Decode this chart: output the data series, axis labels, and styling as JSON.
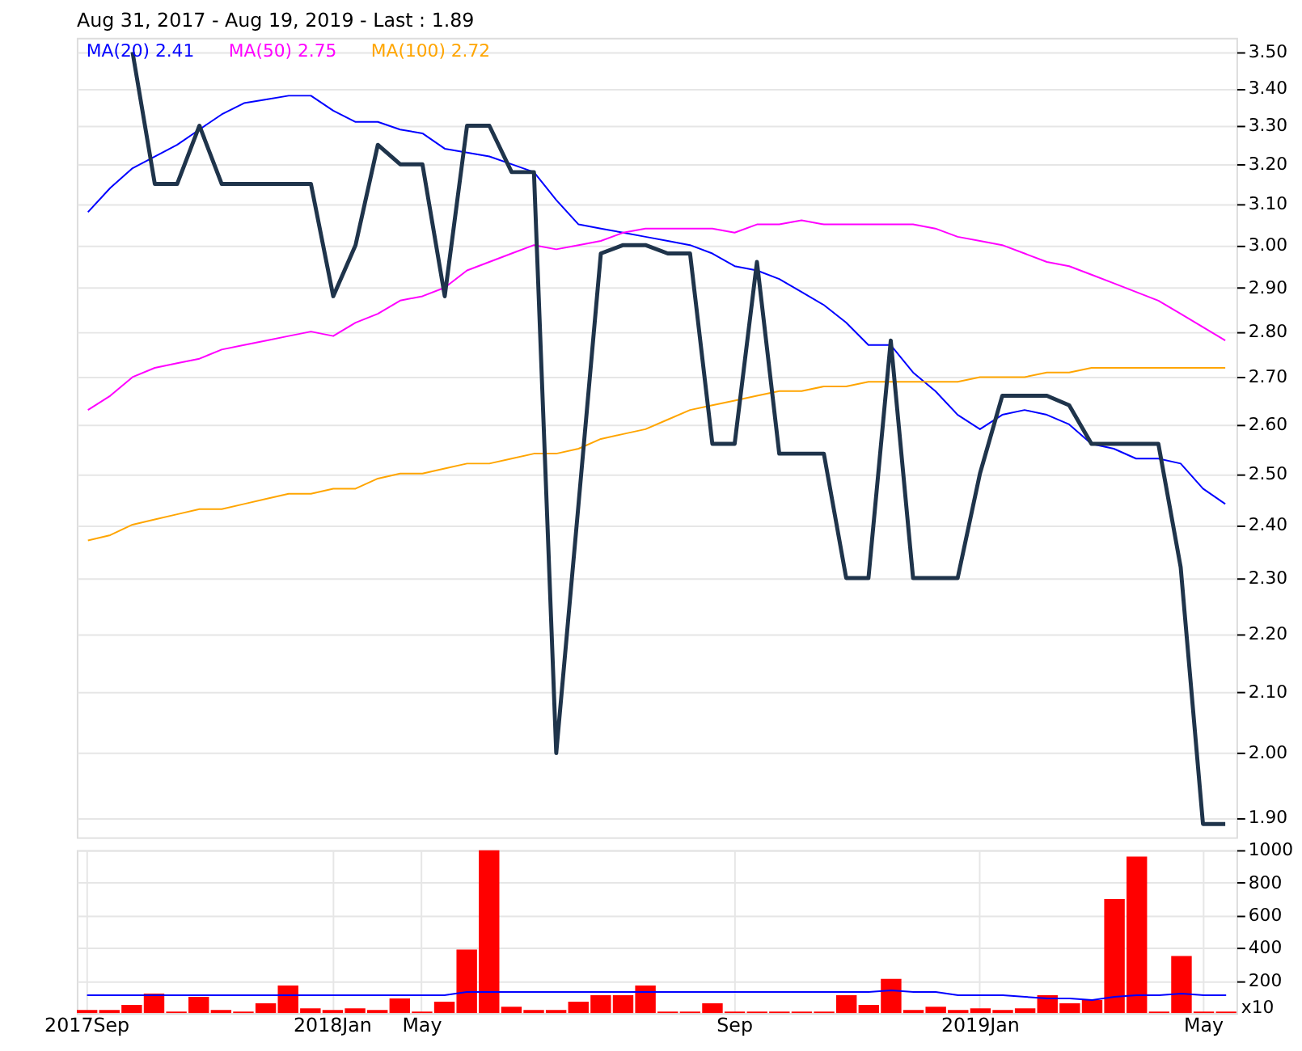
{
  "chart_data": [
    {
      "type": "line",
      "title": "Aug 31, 2017 - Aug 19, 2019 - Last : 1.89",
      "categories": [
        null,
        null,
        null,
        null,
        null,
        null,
        null,
        null,
        null,
        null,
        null,
        null,
        null,
        null,
        null,
        null,
        null,
        null,
        null,
        null,
        null,
        null,
        null,
        null,
        null,
        null,
        null,
        null,
        null,
        null,
        null,
        null,
        null,
        null,
        null,
        null,
        null,
        null,
        null,
        null,
        null,
        null,
        null,
        null,
        null,
        null,
        null,
        null,
        null,
        null,
        null,
        null
      ],
      "tick_labels": "y",
      "log": true,
      "grid": true,
      "legend": "top left",
      "ylim": [
        1.87,
        3.54
      ],
      "yticks": [
        {
          "value": 1.9,
          "label": "1.90"
        },
        {
          "value": 2.0,
          "label": "2.00"
        },
        {
          "value": 2.1,
          "label": "2.10"
        },
        {
          "value": 2.2,
          "label": "2.20"
        },
        {
          "value": 2.3,
          "label": "2.30"
        },
        {
          "value": 2.4,
          "label": "2.40"
        },
        {
          "value": 2.5,
          "label": "2.50"
        },
        {
          "value": 2.6,
          "label": "2.60"
        },
        {
          "value": 2.7,
          "label": "2.70"
        },
        {
          "value": 2.8,
          "label": "2.80"
        },
        {
          "value": 2.9,
          "label": "2.90"
        },
        {
          "value": 3.0,
          "label": "3.00"
        },
        {
          "value": 3.1,
          "label": "3.10"
        },
        {
          "value": 3.2,
          "label": "3.20"
        },
        {
          "value": 3.3,
          "label": "3.30"
        },
        {
          "value": 3.4,
          "label": "3.40"
        },
        {
          "value": 3.5,
          "label": "3.50"
        }
      ],
      "series": [
        {
          "name": "MA(20) 2.41",
          "color": "#0000ff",
          "values": [
            3.08,
            3.14,
            3.19,
            3.22,
            3.25,
            3.29,
            3.33,
            3.36,
            3.37,
            3.38,
            3.38,
            3.34,
            3.31,
            3.31,
            3.29,
            3.28,
            3.24,
            3.23,
            3.22,
            3.2,
            3.18,
            3.11,
            3.05,
            3.04,
            3.03,
            3.02,
            3.01,
            3.0,
            2.98,
            2.95,
            2.94,
            2.92,
            2.89,
            2.86,
            2.82,
            2.77,
            2.77,
            2.71,
            2.67,
            2.62,
            2.59,
            2.62,
            2.63,
            2.62,
            2.6,
            2.56,
            2.55,
            2.53,
            2.53,
            2.52,
            2.47,
            2.44
          ]
        },
        {
          "name": "MA(50) 2.75",
          "color": "#ff00ff",
          "values": [
            2.63,
            2.66,
            2.7,
            2.72,
            2.73,
            2.74,
            2.76,
            2.77,
            2.78,
            2.79,
            2.8,
            2.79,
            2.82,
            2.84,
            2.87,
            2.88,
            2.9,
            2.94,
            2.96,
            2.98,
            3.0,
            2.99,
            3.0,
            3.01,
            3.03,
            3.04,
            3.04,
            3.04,
            3.04,
            3.03,
            3.05,
            3.05,
            3.06,
            3.05,
            3.05,
            3.05,
            3.05,
            3.05,
            3.04,
            3.02,
            3.01,
            3.0,
            2.98,
            2.96,
            2.95,
            2.93,
            2.91,
            2.89,
            2.87,
            2.84,
            2.81,
            2.78
          ]
        },
        {
          "name": "MA(100) 2.72",
          "color": "#ffa500",
          "values": [
            2.37,
            2.38,
            2.4,
            2.41,
            2.42,
            2.43,
            2.43,
            2.44,
            2.45,
            2.46,
            2.46,
            2.47,
            2.47,
            2.49,
            2.5,
            2.5,
            2.51,
            2.52,
            2.52,
            2.53,
            2.54,
            2.54,
            2.55,
            2.57,
            2.58,
            2.59,
            2.61,
            2.63,
            2.64,
            2.65,
            2.66,
            2.67,
            2.67,
            2.68,
            2.68,
            2.69,
            2.69,
            2.69,
            2.69,
            2.69,
            2.7,
            2.7,
            2.7,
            2.71,
            2.71,
            2.72,
            2.72,
            2.72,
            2.72,
            2.72,
            2.72,
            2.72
          ]
        },
        {
          "color": "#1f344b",
          "values": [
            null,
            null,
            3.5,
            3.15,
            3.15,
            3.3,
            3.15,
            3.15,
            3.15,
            3.15,
            3.15,
            2.88,
            3.0,
            3.25,
            3.2,
            3.2,
            2.88,
            3.3,
            3.3,
            3.18,
            3.18,
            2.0,
            2.44,
            2.98,
            3.0,
            3.0,
            2.98,
            2.98,
            2.56,
            2.56,
            2.96,
            2.54,
            2.54,
            2.54,
            2.3,
            2.3,
            2.78,
            2.3,
            2.3,
            2.3,
            2.5,
            2.66,
            2.66,
            2.66,
            2.64,
            2.56,
            2.56,
            2.56,
            2.56,
            2.32,
            1.89,
            1.89
          ]
        }
      ]
    },
    {
      "type": "bar",
      "categories": [
        "2017Sep",
        null,
        null,
        null,
        null,
        null,
        null,
        null,
        null,
        null,
        null,
        "2018Jan",
        null,
        null,
        null,
        "May",
        null,
        null,
        null,
        null,
        null,
        null,
        null,
        null,
        null,
        null,
        null,
        null,
        null,
        "Sep",
        null,
        null,
        null,
        null,
        null,
        null,
        null,
        null,
        null,
        null,
        "2019Jan",
        null,
        null,
        null,
        null,
        null,
        null,
        null,
        null,
        null,
        "May",
        null
      ],
      "grid": true,
      "ylim": [
        0,
        1000
      ],
      "yticks": [
        200,
        400,
        600,
        800,
        1000
      ],
      "annotations": [
        "x10"
      ],
      "series": [
        {
          "color": "#ff0000",
          "values": [
            20,
            20,
            50,
            120,
            10,
            100,
            20,
            10,
            60,
            170,
            30,
            20,
            30,
            20,
            90,
            10,
            70,
            390,
            1000,
            40,
            20,
            20,
            70,
            110,
            110,
            170,
            10,
            10,
            60,
            10,
            10,
            10,
            10,
            10,
            110,
            50,
            210,
            20,
            40,
            20,
            30,
            20,
            30,
            110,
            60,
            80,
            700,
            960,
            10,
            350,
            10,
            10
          ]
        },
        {
          "type": "line",
          "color": "#0000ff",
          "values": [
            110,
            110,
            110,
            110,
            110,
            110,
            110,
            110,
            110,
            110,
            110,
            110,
            110,
            110,
            110,
            110,
            110,
            130,
            130,
            130,
            130,
            130,
            130,
            130,
            130,
            130,
            130,
            130,
            130,
            130,
            130,
            130,
            130,
            130,
            130,
            130,
            140,
            130,
            130,
            110,
            110,
            110,
            100,
            90,
            90,
            80,
            100,
            110,
            110,
            120,
            110,
            110
          ]
        }
      ]
    }
  ]
}
